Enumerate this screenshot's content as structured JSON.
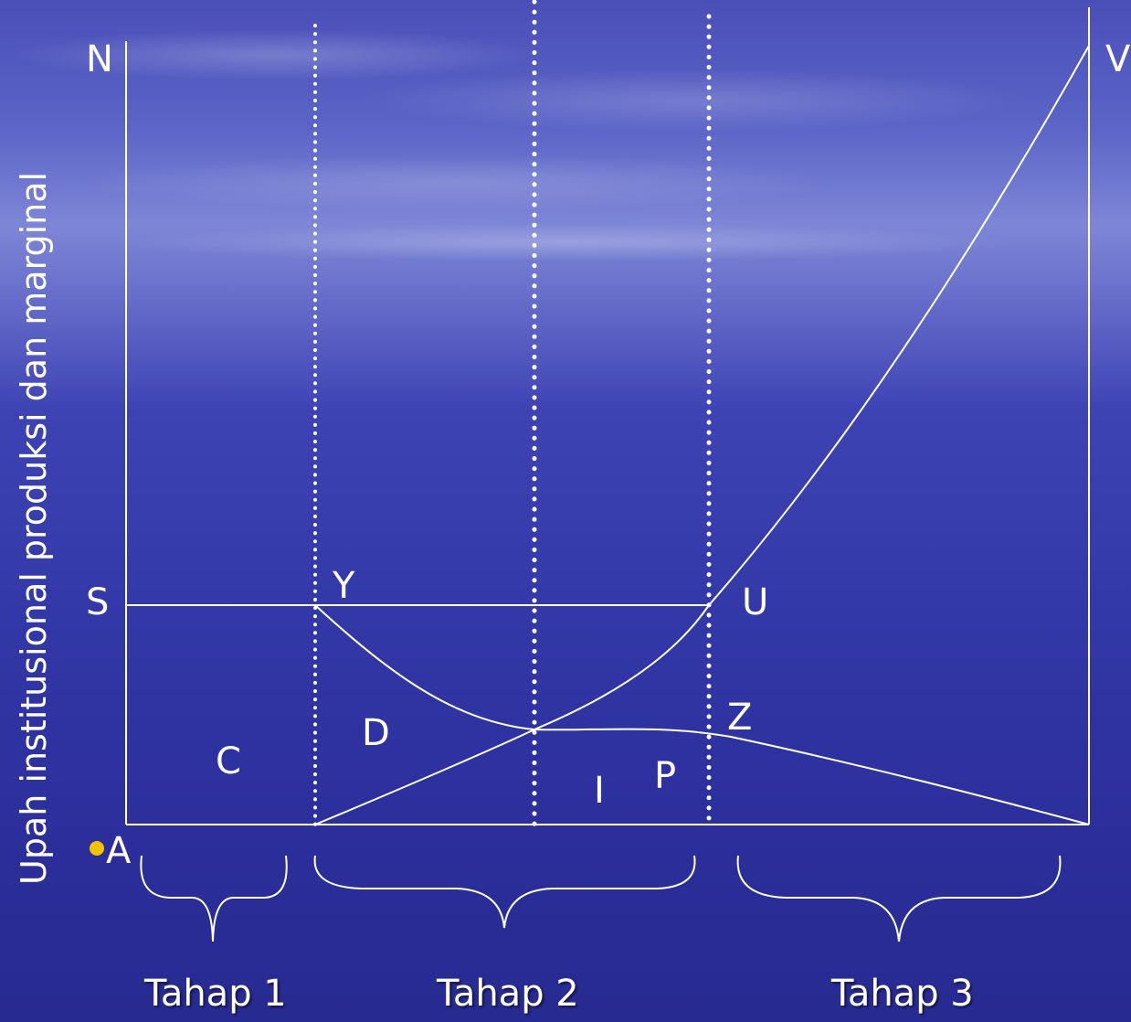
{
  "y_axis_label": "Upah institusional produksi dan marginal",
  "points": {
    "N": "N",
    "V": "V",
    "S": "S",
    "Y": "Y",
    "U": "U",
    "D": "D",
    "Z": "Z",
    "C": "C",
    "I": "I",
    "P": "P",
    "A": "A"
  },
  "stages": [
    "Tahap 1",
    "Tahap 2",
    "Tahap 3"
  ],
  "colors": {
    "line": "#ffffff",
    "bullet": "#f5c400"
  }
}
